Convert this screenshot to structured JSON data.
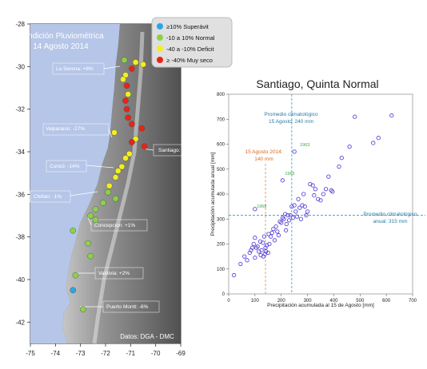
{
  "map": {
    "title_line1": "Condición Pluviométrica",
    "title_line2": "14 Agosto 2014",
    "credit": "Datos: DGA - DMC",
    "lon_ticks": [
      "-75",
      "-74",
      "-73",
      "-72",
      "-71",
      "-70",
      "-69"
    ],
    "lat_ticks": [
      "-28",
      "-30",
      "-32",
      "-34",
      "-36",
      "-38",
      "-40",
      "-42"
    ],
    "legend": [
      {
        "label": "≥10% Superávit",
        "color": "#2aa6e8"
      },
      {
        "label": "-10 a 10% Normal",
        "color": "#8bd24a"
      },
      {
        "label": "-40 a -10% Deficit",
        "color": "#f2ef20"
      },
      {
        "label": "≥ -40% Muy seco",
        "color": "#e82418"
      }
    ],
    "callouts": [
      {
        "text": "La Serena: +6%"
      },
      {
        "text": "Valparaiso: -27%"
      },
      {
        "text": "Santiago: -45%"
      },
      {
        "text": "Curicó: -14%"
      },
      {
        "text": "Chillan: -1%"
      },
      {
        "text": "Concepcion: +1%"
      },
      {
        "text": "Valdivia: +2%"
      },
      {
        "text": "Puerto Montt: -6%"
      }
    ],
    "stations": [
      {
        "lat": -29.7,
        "lon": -71.25,
        "cat": "normal"
      },
      {
        "lat": -29.8,
        "lon": -70.8,
        "cat": "deficit"
      },
      {
        "lat": -29.9,
        "lon": -70.5,
        "cat": "deficit"
      },
      {
        "lat": -30.1,
        "lon": -70.95,
        "cat": "red"
      },
      {
        "lat": -30.4,
        "lon": -71.2,
        "cat": "deficit"
      },
      {
        "lat": -30.6,
        "lon": -71.3,
        "cat": "deficit"
      },
      {
        "lat": -30.9,
        "lon": -71.15,
        "cat": "red"
      },
      {
        "lat": -31.3,
        "lon": -71.1,
        "cat": "deficit"
      },
      {
        "lat": -31.6,
        "lon": -71.2,
        "cat": "red"
      },
      {
        "lat": -32.0,
        "lon": -71.15,
        "cat": "red"
      },
      {
        "lat": -32.4,
        "lon": -71.1,
        "cat": "red"
      },
      {
        "lat": -32.7,
        "lon": -70.95,
        "cat": "red"
      },
      {
        "lat": -32.9,
        "lon": -70.55,
        "cat": "red"
      },
      {
        "lat": -33.1,
        "lon": -71.65,
        "cat": "deficit"
      },
      {
        "lat": -33.4,
        "lon": -70.8,
        "cat": "deficit"
      },
      {
        "lat": -33.55,
        "lon": -70.95,
        "cat": "red"
      },
      {
        "lat": -33.75,
        "lon": -70.45,
        "cat": "red"
      },
      {
        "lat": -34.1,
        "lon": -71.05,
        "cat": "deficit"
      },
      {
        "lat": -34.3,
        "lon": -71.2,
        "cat": "deficit"
      },
      {
        "lat": -34.7,
        "lon": -71.35,
        "cat": "deficit"
      },
      {
        "lat": -34.9,
        "lon": -71.5,
        "cat": "deficit"
      },
      {
        "lat": -35.2,
        "lon": -71.6,
        "cat": "deficit"
      },
      {
        "lat": -35.6,
        "lon": -71.85,
        "cat": "deficit"
      },
      {
        "lat": -35.9,
        "lon": -71.9,
        "cat": "normal"
      },
      {
        "lat": -36.2,
        "lon": -71.6,
        "cat": "normal"
      },
      {
        "lat": -36.4,
        "lon": -72.1,
        "cat": "normal"
      },
      {
        "lat": -36.7,
        "lon": -72.4,
        "cat": "normal"
      },
      {
        "lat": -37.0,
        "lon": -72.6,
        "cat": "normal"
      },
      {
        "lat": -37.2,
        "lon": -72.4,
        "cat": "normal"
      },
      {
        "lat": -37.7,
        "lon": -73.3,
        "cat": "normal"
      },
      {
        "lat": -38.3,
        "lon": -72.7,
        "cat": "normal"
      },
      {
        "lat": -38.9,
        "lon": -72.6,
        "cat": "normal"
      },
      {
        "lat": -39.8,
        "lon": -73.2,
        "cat": "normal"
      },
      {
        "lat": -40.5,
        "lon": -73.3,
        "cat": "surplus"
      },
      {
        "lat": -41.4,
        "lon": -72.9,
        "cat": "normal"
      }
    ]
  },
  "chart_data": {
    "type": "scatter",
    "title": "Santiago, Quinta Normal",
    "xlabel": "Precipitación acumulada al 15 de Agosto [mm]",
    "ylabel": "Precipitación acumulada anual [mm]",
    "xlim": [
      0,
      700
    ],
    "ylim": [
      0,
      800
    ],
    "xticks": [
      0,
      100,
      200,
      300,
      400,
      500,
      600,
      700
    ],
    "yticks": [
      0,
      100,
      200,
      300,
      400,
      500,
      600,
      700,
      800
    ],
    "point_color": "#5a46d6",
    "vline": {
      "x": 240,
      "label_line1": "Promedio climatológico",
      "label_line2": "15 Agosto: 240 mm"
    },
    "hline": {
      "y": 315,
      "label_line1": "Promedio climatológico",
      "label_line2": "anual: 315 mm"
    },
    "current": {
      "x": 140,
      "label_line1": "15 Agosto 2014:",
      "label_line2": "140 mm"
    },
    "year_labels": [
      {
        "text": "1963",
        "x": 262,
        "y": 585
      },
      {
        "text": "1965",
        "x": 205,
        "y": 470
      },
      {
        "text": "1968",
        "x": 98,
        "y": 340
      }
    ],
    "points": [
      [
        20,
        75
      ],
      [
        45,
        120
      ],
      [
        60,
        150
      ],
      [
        70,
        135
      ],
      [
        80,
        165
      ],
      [
        85,
        175
      ],
      [
        90,
        185
      ],
      [
        95,
        200
      ],
      [
        100,
        145
      ],
      [
        100,
        225
      ],
      [
        105,
        185
      ],
      [
        110,
        190
      ],
      [
        115,
        170
      ],
      [
        120,
        210
      ],
      [
        122,
        155
      ],
      [
        125,
        175
      ],
      [
        130,
        205
      ],
      [
        132,
        150
      ],
      [
        135,
        230
      ],
      [
        138,
        160
      ],
      [
        140,
        185
      ],
      [
        142,
        170
      ],
      [
        145,
        195
      ],
      [
        150,
        165
      ],
      [
        152,
        240
      ],
      [
        155,
        200
      ],
      [
        160,
        230
      ],
      [
        165,
        245
      ],
      [
        170,
        260
      ],
      [
        175,
        215
      ],
      [
        180,
        270
      ],
      [
        185,
        250
      ],
      [
        190,
        235
      ],
      [
        195,
        290
      ],
      [
        200,
        285
      ],
      [
        205,
        305
      ],
      [
        210,
        300
      ],
      [
        215,
        320
      ],
      [
        218,
        255
      ],
      [
        220,
        280
      ],
      [
        225,
        315
      ],
      [
        230,
        295
      ],
      [
        235,
        315
      ],
      [
        240,
        350
      ],
      [
        245,
        305
      ],
      [
        250,
        355
      ],
      [
        255,
        330
      ],
      [
        260,
        310
      ],
      [
        265,
        380
      ],
      [
        270,
        345
      ],
      [
        275,
        300
      ],
      [
        280,
        355
      ],
      [
        285,
        400
      ],
      [
        290,
        350
      ],
      [
        295,
        315
      ],
      [
        300,
        330
      ],
      [
        310,
        440
      ],
      [
        320,
        435
      ],
      [
        325,
        395
      ],
      [
        330,
        420
      ],
      [
        340,
        380
      ],
      [
        350,
        375
      ],
      [
        360,
        400
      ],
      [
        370,
        420
      ],
      [
        380,
        470
      ],
      [
        390,
        415
      ],
      [
        395,
        410
      ],
      [
        100,
        340
      ],
      [
        205,
        455
      ],
      [
        250,
        570
      ],
      [
        420,
        510
      ],
      [
        460,
        590
      ],
      [
        480,
        710
      ],
      [
        550,
        605
      ],
      [
        570,
        625
      ],
      [
        620,
        715
      ],
      [
        430,
        545
      ]
    ]
  }
}
